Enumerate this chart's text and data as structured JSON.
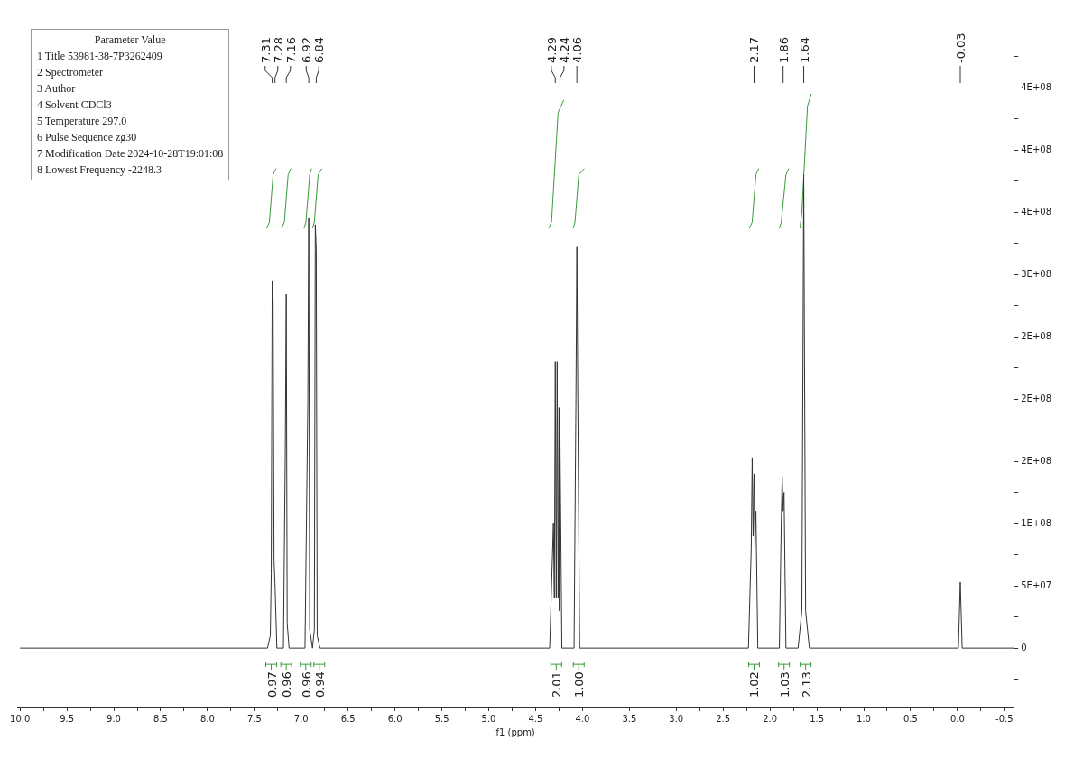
{
  "chart_data": {
    "type": "line",
    "xlabel": "f1 (ppm)",
    "xlim": [
      10.03,
      -0.6
    ],
    "xticks": [
      {
        "value": 10,
        "label": "10.0"
      },
      {
        "value": 9.75,
        "label": null
      },
      9.5,
      {
        "value": 9.25,
        "label": null
      },
      {
        "value": 9,
        "label": "9.0"
      },
      {
        "value": 8.75,
        "label": null
      },
      8.5,
      {
        "value": 8.25,
        "label": null
      },
      {
        "value": 8,
        "label": "8.0"
      },
      {
        "value": 7.75,
        "label": null
      },
      7.5,
      {
        "value": 7.25,
        "label": null
      },
      {
        "value": 7,
        "label": "7.0"
      },
      {
        "value": 6.75,
        "label": null
      },
      6.5,
      {
        "value": 6.25,
        "label": null
      },
      {
        "value": 6,
        "label": "6.0"
      },
      {
        "value": 5.75,
        "label": null
      },
      5.5,
      {
        "value": 5.25,
        "label": null
      },
      {
        "value": 5,
        "label": "5.0"
      },
      {
        "value": 4.75,
        "label": null
      },
      4.5,
      {
        "value": 4.25,
        "label": null
      },
      {
        "value": 4,
        "label": "4.0"
      },
      {
        "value": 3.75,
        "label": null
      },
      3.5,
      {
        "value": 3.25,
        "label": null
      },
      {
        "value": 3,
        "label": "3.0"
      },
      {
        "value": 2.75,
        "label": null
      },
      2.5,
      {
        "value": 2.25,
        "label": null
      },
      {
        "value": 2,
        "label": "2.0"
      },
      {
        "value": 1.75,
        "label": null
      },
      1.5,
      {
        "value": 1.25,
        "label": null
      },
      {
        "value": 1,
        "label": "1.0"
      },
      {
        "value": 0.75,
        "label": null
      },
      0.5,
      {
        "value": 0.25,
        "label": null
      },
      {
        "value": 0,
        "label": "0.0"
      },
      {
        "value": -0.25,
        "label": null
      },
      -0.5
    ],
    "ylim": [
      -47000000,
      500000000
    ],
    "yticks": [
      {
        "value": -25000000,
        "label": null
      },
      0,
      {
        "value": 25000000,
        "label": null
      },
      {
        "value": 50000000,
        "label": "5E+07"
      },
      {
        "value": 75000000,
        "label": null
      },
      {
        "value": 100000000,
        "label": "1E+08"
      },
      {
        "value": 125000000,
        "label": null
      },
      {
        "value": 150000000,
        "label": "2E+08"
      },
      {
        "value": 175000000,
        "label": null
      },
      {
        "value": 200000000,
        "label": "2E+08"
      },
      {
        "value": 225000000,
        "label": null
      },
      {
        "value": 250000000,
        "label": "2E+08"
      },
      {
        "value": 275000000,
        "label": null
      },
      {
        "value": 300000000,
        "label": "3E+08"
      },
      {
        "value": 325000000,
        "label": null
      },
      {
        "value": 350000000,
        "label": "4E+08"
      },
      {
        "value": 375000000,
        "label": null
      },
      {
        "value": 400000000,
        "label": "4E+08"
      },
      {
        "value": 425000000,
        "label": null
      },
      {
        "value": 450000000,
        "label": "4E+08"
      },
      {
        "value": 475000000,
        "label": null
      }
    ],
    "grid": false,
    "legend": false,
    "marker": "none",
    "series": [
      {
        "color": "#333333",
        "x": [
          10.0,
          7.36,
          7.33,
          7.32,
          7.31,
          7.3,
          7.29,
          7.28,
          7.26,
          7.19,
          7.17,
          7.16,
          7.15,
          7.13,
          6.96,
          6.93,
          6.92,
          6.91,
          6.88,
          6.86,
          6.85,
          6.84,
          6.83,
          6.8,
          4.35,
          4.31,
          4.3,
          4.29,
          4.28,
          4.27,
          4.26,
          4.25,
          4.245,
          4.24,
          4.22,
          4.09,
          4.07,
          4.06,
          4.05,
          4.03,
          2.23,
          2.2,
          2.19,
          2.18,
          2.17,
          2.16,
          2.15,
          2.13,
          1.9,
          1.88,
          1.87,
          1.86,
          1.85,
          1.83,
          1.7,
          1.66,
          1.64,
          1.62,
          1.58,
          -0.01,
          -0.03,
          -0.05,
          -0.6
        ],
        "values": [
          0,
          0,
          10000000,
          60000000,
          295000000,
          280000000,
          70000000,
          52000000,
          0,
          0,
          160000000,
          284000000,
          20000000,
          0,
          0,
          196000000,
          345000000,
          15000000,
          0,
          15000000,
          340000000,
          320000000,
          10000000,
          0,
          0,
          100000000,
          40000000,
          230000000,
          40000000,
          230000000,
          40000000,
          193000000,
          30000000,
          170000000,
          0,
          0,
          200000000,
          322000000,
          200000000,
          0,
          0,
          80000000,
          153000000,
          90000000,
          140000000,
          80000000,
          110000000,
          0,
          0,
          100000000,
          138000000,
          110000000,
          125000000,
          0,
          0,
          30000000,
          380000000,
          30000000,
          0,
          0,
          53000000,
          0,
          0
        ]
      },
      {
        "color": "#3a9a3a",
        "x": [
          7.37,
          7.34,
          7.3,
          7.27
        ],
        "values": [
          337000000,
          342000000,
          380000000,
          385000000
        ]
      },
      {
        "color": "#3a9a3a",
        "x": [
          7.21,
          7.18,
          7.14,
          7.11
        ],
        "values": [
          337000000,
          342000000,
          380000000,
          385000000
        ]
      },
      {
        "color": "#3a9a3a",
        "x": [
          6.97,
          6.95,
          6.91,
          6.89
        ],
        "values": [
          337000000,
          342000000,
          380000000,
          385000000
        ]
      },
      {
        "color": "#3a9a3a",
        "x": [
          6.88,
          6.86,
          6.82,
          6.78
        ],
        "values": [
          337000000,
          342000000,
          380000000,
          385000000
        ]
      },
      {
        "color": "#3a9a3a",
        "x": [
          4.36,
          4.33,
          4.26,
          4.2
        ],
        "values": [
          337000000,
          342000000,
          430000000,
          440000000
        ]
      },
      {
        "color": "#3a9a3a",
        "x": [
          4.1,
          4.08,
          4.04,
          3.98
        ],
        "values": [
          337000000,
          342000000,
          380000000,
          385000000
        ]
      },
      {
        "color": "#3a9a3a",
        "x": [
          2.22,
          2.19,
          2.15,
          2.12
        ],
        "values": [
          337000000,
          342000000,
          380000000,
          385000000
        ]
      },
      {
        "color": "#3a9a3a",
        "x": [
          1.9,
          1.88,
          1.83,
          1.8
        ],
        "values": [
          337000000,
          342000000,
          380000000,
          385000000
        ]
      },
      {
        "color": "#3a9a3a",
        "x": [
          1.68,
          1.66,
          1.6,
          1.56
        ],
        "values": [
          337000000,
          350000000,
          435000000,
          445000000
        ]
      }
    ],
    "annotations": [
      "Parameter Value",
      "1 Title 53981-38-7P3262409",
      "2 Spectrometer",
      "3 Author",
      "4 Solvent CDCl3",
      "5 Temperature 297.0",
      "6 Pulse Sequence zg30",
      "7 Modification Date 2024-10-28T19:01:08",
      "8 Lowest Frequency -2248.3",
      {
        "text": "7.31",
        "x": 7.31
      },
      {
        "text": "7.28",
        "x": 7.28
      },
      {
        "text": "7.16",
        "x": 7.16
      },
      {
        "text": "6.92",
        "x": 6.92
      },
      {
        "text": "6.84",
        "x": 6.84
      },
      {
        "text": "4.29",
        "x": 4.29
      },
      {
        "text": "4.24",
        "x": 4.24
      },
      {
        "text": "4.06",
        "x": 4.06
      },
      {
        "text": "2.17",
        "x": 2.17
      },
      {
        "text": "1.86",
        "x": 1.86
      },
      {
        "text": "1.64",
        "x": 1.64
      },
      {
        "text": "-0.03",
        "x": -0.03
      },
      "0.97",
      "0.96",
      "0.96",
      "0.94",
      "2.01",
      "1.00",
      "1.02",
      "1.03",
      "2.13"
    ]
  }
}
